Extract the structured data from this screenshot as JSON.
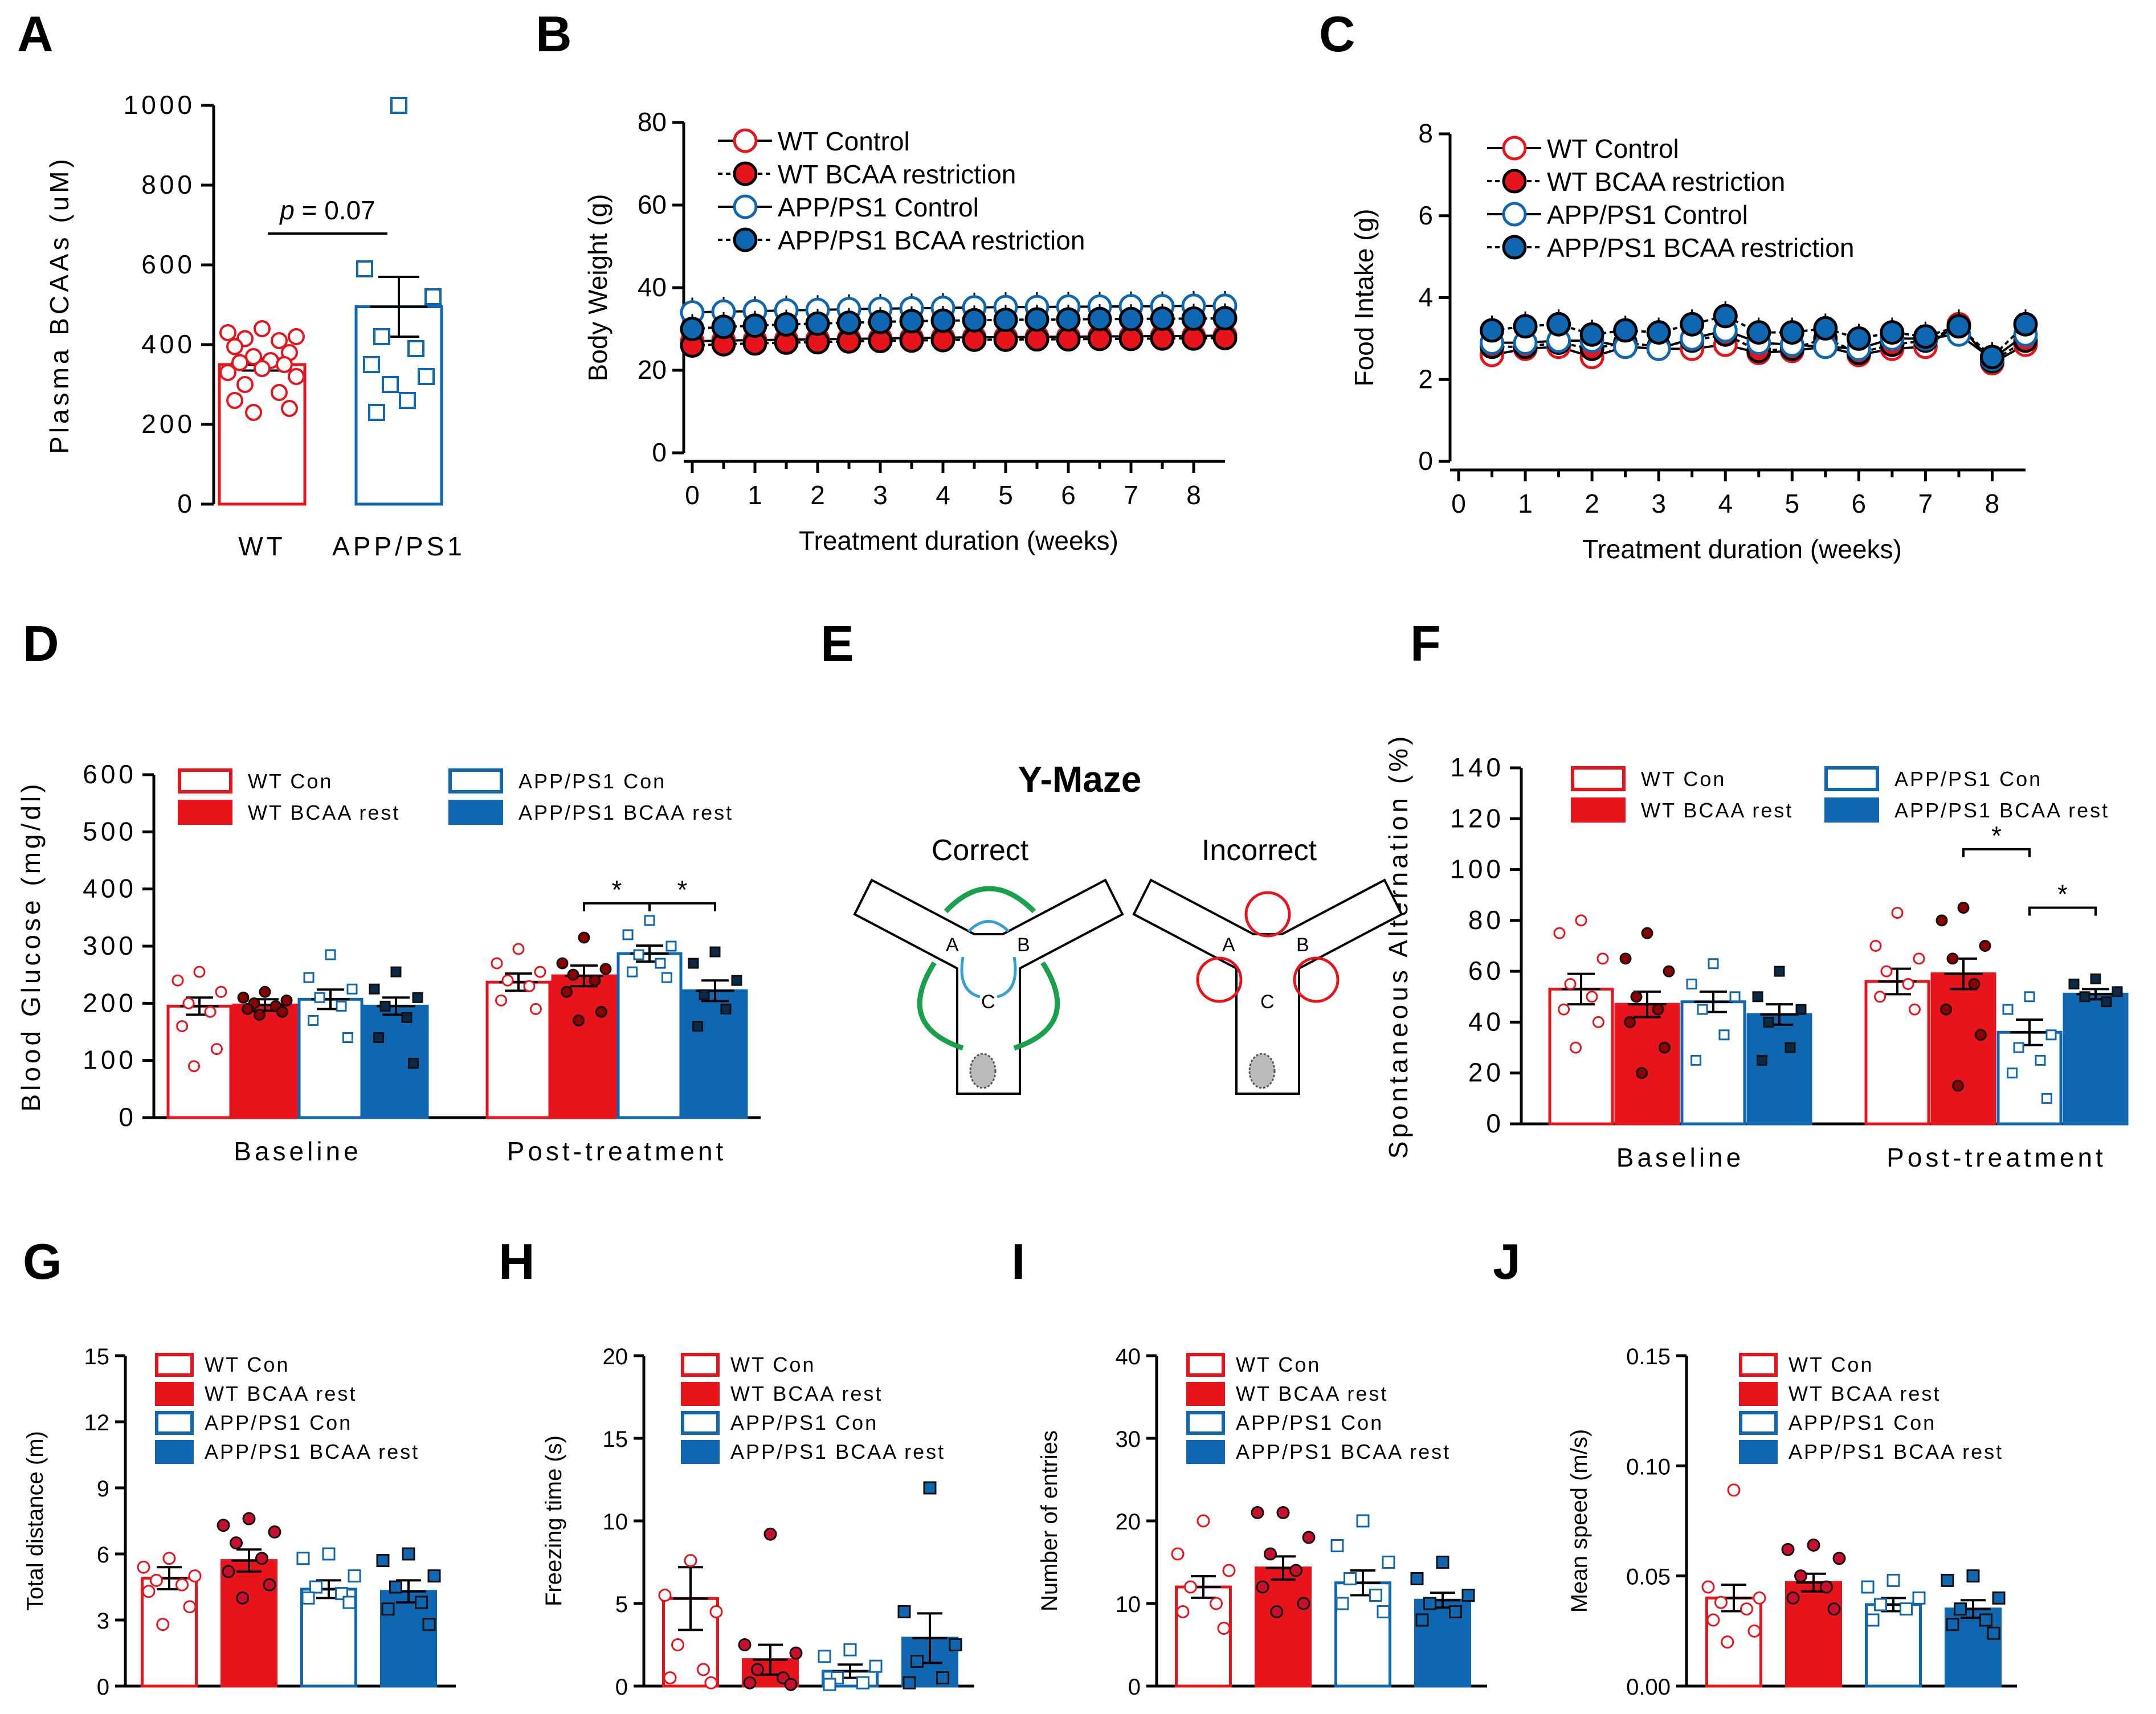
{
  "colors": {
    "red": "#e8141c",
    "blue": "#0f67b1",
    "dark": "#222222",
    "green": "#1aa04a",
    "lightblue": "#33a1d6"
  },
  "panel_letters": {
    "A": "A",
    "B": "B",
    "C": "C",
    "D": "D",
    "E": "E",
    "F": "F",
    "G": "G",
    "H": "H",
    "I": "I",
    "J": "J"
  },
  "chart_data": [
    {
      "id": "A",
      "type": "bar",
      "categories": [
        "WT",
        "APP/PS1"
      ],
      "ylabel": "Plasma BCAAs (uM)",
      "ylim": [
        0,
        1000
      ],
      "yticks": [
        0,
        200,
        400,
        600,
        800,
        1000
      ],
      "means": [
        350,
        495
      ],
      "sem": [
        15,
        75
      ],
      "annotation": {
        "italic": "p",
        "text": " = 0.07"
      },
      "points": [
        [
          440,
          430,
          420,
          415,
          410,
          395,
          380,
          370,
          360,
          355,
          350,
          340,
          330,
          320,
          300,
          280,
          260,
          240,
          230
        ],
        [
          1000,
          590,
          520,
          420,
          390,
          350,
          320,
          300,
          260,
          230
        ]
      ]
    },
    {
      "id": "B",
      "type": "line",
      "xlabel": "Treatment duration (weeks)",
      "ylabel": "Body Weight (g)",
      "xlim": [
        0,
        8.5
      ],
      "ylim": [
        0,
        80
      ],
      "xticks": [
        0,
        1,
        2,
        3,
        4,
        5,
        6,
        7,
        8
      ],
      "yticks": [
        0,
        20,
        40,
        60,
        80
      ],
      "x": [
        0,
        0.5,
        1,
        1.5,
        2,
        2.5,
        3,
        3.5,
        4,
        4.5,
        5,
        5.5,
        6,
        6.5,
        7,
        7.5,
        8,
        8.5
      ],
      "series": [
        {
          "name": "WT Control",
          "values": [
            27,
            27.2,
            27.3,
            27.4,
            27.5,
            27.6,
            27.7,
            27.8,
            27.9,
            28,
            28,
            28.1,
            28.1,
            28.2,
            28.2,
            28.3,
            28.3,
            28.4
          ]
        },
        {
          "name": "WT BCAA restriction",
          "values": [
            26,
            26.3,
            26.5,
            26.7,
            26.8,
            27,
            27.1,
            27.2,
            27.3,
            27.4,
            27.4,
            27.5,
            27.5,
            27.6,
            27.6,
            27.7,
            27.7,
            27.8
          ]
        },
        {
          "name": "APP/PS1 Control",
          "values": [
            34,
            34.2,
            34.3,
            34.5,
            34.6,
            34.8,
            34.9,
            35,
            35.1,
            35.2,
            35.3,
            35.3,
            35.4,
            35.4,
            35.5,
            35.5,
            35.6,
            35.6
          ]
        },
        {
          "name": "APP/PS1 BCAA restriction",
          "values": [
            30,
            30.5,
            30.8,
            31.1,
            31.3,
            31.5,
            31.7,
            31.9,
            32,
            32.1,
            32.2,
            32.3,
            32.3,
            32.4,
            32.4,
            32.5,
            32.5,
            32.6
          ]
        }
      ]
    },
    {
      "id": "C",
      "type": "line",
      "xlabel": "Treatment duration (weeks)",
      "ylabel": "Food Intake (g)",
      "xlim": [
        0,
        8.5
      ],
      "ylim": [
        0,
        8
      ],
      "xticks": [
        0,
        1,
        2,
        3,
        4,
        5,
        6,
        7,
        8
      ],
      "yticks": [
        0,
        2,
        4,
        6,
        8
      ],
      "x": [
        0.5,
        1,
        1.5,
        2,
        2.5,
        3,
        3.5,
        4,
        4.5,
        5,
        5.5,
        6,
        6.5,
        7,
        7.5,
        8,
        8.5
      ],
      "series": [
        {
          "name": "WT Control",
          "values": [
            2.6,
            2.75,
            2.8,
            2.55,
            2.8,
            2.75,
            2.75,
            2.85,
            2.65,
            2.7,
            2.8,
            2.6,
            2.75,
            2.8,
            3.35,
            2.4,
            2.85
          ]
        },
        {
          "name": "WT BCAA restriction",
          "values": [
            2.8,
            2.8,
            2.9,
            2.75,
            2.9,
            2.8,
            2.95,
            3.1,
            2.7,
            2.75,
            3.0,
            2.65,
            2.85,
            2.95,
            3.3,
            2.45,
            2.95
          ]
        },
        {
          "name": "APP/PS1 Control",
          "values": [
            2.9,
            2.9,
            2.95,
            2.95,
            2.8,
            2.75,
            3.0,
            3.2,
            2.9,
            2.85,
            2.8,
            2.75,
            3.0,
            3.0,
            3.1,
            2.5,
            3.1
          ]
        },
        {
          "name": "APP/PS1 BCAA restriction",
          "values": [
            3.2,
            3.3,
            3.35,
            3.1,
            3.2,
            3.15,
            3.35,
            3.55,
            3.15,
            3.15,
            3.25,
            3.0,
            3.15,
            3.05,
            3.3,
            2.55,
            3.35
          ]
        }
      ]
    },
    {
      "id": "D",
      "type": "bar",
      "ylabel": "Blood  Glucose (mg/dl)",
      "ylim": [
        0,
        600
      ],
      "yticks": [
        0,
        100,
        200,
        300,
        400,
        500,
        600
      ],
      "groups": [
        "Baseline",
        "Post-treatment"
      ],
      "series_names": [
        "WT Con",
        "WT BCAA rest",
        "APP/PS1 Con",
        "APP/PS1 BCAA rest"
      ],
      "means": [
        [
          195,
          197,
          207,
          195
        ],
        [
          237,
          248,
          287,
          222
        ]
      ],
      "sem": [
        [
          15,
          10,
          17,
          15
        ],
        [
          15,
          18,
          14,
          18
        ]
      ],
      "points": [
        [
          [
            255,
            240,
            220,
            200,
            185,
            160,
            120,
            90
          ],
          [
            220,
            210,
            205,
            200,
            195,
            190,
            185,
            180
          ],
          [
            285,
            245,
            225,
            210,
            195,
            170,
            140
          ],
          [
            255,
            225,
            210,
            195,
            175,
            140,
            95
          ]
        ],
        [
          [
            295,
            270,
            255,
            240,
            230,
            205,
            190
          ],
          [
            315,
            270,
            260,
            250,
            240,
            220,
            185,
            170
          ],
          [
            345,
            320,
            300,
            285,
            270,
            255,
            245
          ],
          [
            290,
            270,
            240,
            215,
            190,
            160
          ]
        ]
      ],
      "significance": [
        "*",
        "*"
      ]
    },
    {
      "id": "F",
      "type": "bar",
      "ylabel": "Spontaneous  Alternation (%)",
      "ylim": [
        0,
        140
      ],
      "yticks": [
        0,
        20,
        40,
        60,
        80,
        100,
        120,
        140
      ],
      "groups": [
        "Baseline",
        "Post-treatment"
      ],
      "series_names": [
        "WT Con",
        "WT BCAA rest",
        "APP/PS1 Con",
        "APP/PS1 BCAA rest"
      ],
      "means": [
        [
          53,
          47,
          48,
          43
        ],
        [
          56,
          59,
          36,
          51
        ]
      ],
      "sem": [
        [
          6,
          5,
          4,
          4
        ],
        [
          5,
          6,
          5,
          2
        ]
      ],
      "points": [
        [
          [
            80,
            75,
            65,
            55,
            50,
            45,
            40,
            30
          ],
          [
            75,
            65,
            60,
            50,
            45,
            40,
            30,
            20
          ],
          [
            63,
            55,
            50,
            45,
            35,
            25
          ],
          [
            60,
            50,
            45,
            40,
            30,
            25
          ]
        ],
        [
          [
            83,
            70,
            65,
            60,
            55,
            50,
            45
          ],
          [
            85,
            80,
            70,
            65,
            55,
            45,
            35,
            15
          ],
          [
            50,
            45,
            35,
            30,
            25,
            20,
            10
          ],
          [
            57,
            55,
            52,
            50,
            48
          ]
        ]
      ],
      "significance": [
        "*",
        "*"
      ]
    },
    {
      "id": "G",
      "type": "bar",
      "ylabel": "Total distance (m)",
      "ylim": [
        0,
        15
      ],
      "yticks": [
        0,
        3,
        6,
        9,
        12,
        15
      ],
      "series_names": [
        "WT Con",
        "WT BCAA rest",
        "APP/PS1 Con",
        "APP/PS1 BCAA rest"
      ],
      "means": [
        4.9,
        5.7,
        4.4,
        4.3
      ],
      "sem": [
        0.5,
        0.5,
        0.4,
        0.5
      ],
      "points": [
        [
          5.8,
          5.4,
          5.0,
          4.8,
          4.6,
          4.3,
          3.6,
          2.8
        ],
        [
          7.6,
          7.3,
          7.0,
          6.5,
          5.8,
          5.2,
          4.6,
          4.0
        ],
        [
          6.0,
          5.8,
          5.0,
          4.5,
          4.2,
          4.0,
          3.8
        ],
        [
          6.0,
          5.7,
          5.0,
          4.5,
          3.8,
          3.5,
          2.8
        ]
      ]
    },
    {
      "id": "H",
      "type": "bar",
      "ylabel": "Freezing time (s)",
      "ylim": [
        0,
        20
      ],
      "yticks": [
        0,
        5,
        10,
        15,
        20
      ],
      "series_names": [
        "WT Con",
        "WT BCAA rest",
        "APP/PS1 Con",
        "APP/PS1 BCAA rest"
      ],
      "means": [
        5.3,
        1.6,
        0.9,
        2.9
      ],
      "sem": [
        1.9,
        0.9,
        0.4,
        1.5
      ],
      "points": [
        [
          7.6,
          5.5,
          4.5,
          2.5,
          1.0,
          0.5,
          0.2
        ],
        [
          9.2,
          2.5,
          2.0,
          1.0,
          0.5,
          0.2,
          0.1
        ],
        [
          2.2,
          1.8,
          1.2,
          0.5,
          0.2,
          0.1
        ],
        [
          12,
          4.5,
          2.5,
          1.5,
          0.5,
          0.2
        ]
      ]
    },
    {
      "id": "I",
      "type": "bar",
      "ylabel": "Number of entries",
      "ylim": [
        0,
        40
      ],
      "yticks": [
        0,
        10,
        20,
        30,
        40
      ],
      "series_names": [
        "WT Con",
        "WT BCAA rest",
        "APP/PS1 Con",
        "APP/PS1 BCAA rest"
      ],
      "means": [
        12,
        14.3,
        12.5,
        10.4
      ],
      "sem": [
        1.3,
        1.4,
        1.5,
        0.9
      ],
      "points": [
        [
          20,
          16,
          14,
          12,
          10,
          9,
          7
        ],
        [
          21,
          21,
          18,
          16,
          14,
          12,
          10,
          9
        ],
        [
          20,
          17,
          15,
          13,
          11,
          10,
          9
        ],
        [
          15,
          13,
          11,
          10,
          9,
          8
        ]
      ]
    },
    {
      "id": "J",
      "type": "bar",
      "ylabel": "Mean speed (m/s)",
      "ylim": [
        0,
        0.15
      ],
      "yticks": [
        "0.00",
        "0.05",
        "0.10",
        "0.15"
      ],
      "series_names": [
        "WT Con",
        "WT BCAA rest",
        "APP/PS1 Con",
        "APP/PS1 BCAA rest"
      ],
      "means": [
        0.04,
        0.047,
        0.037,
        0.035
      ],
      "sem": [
        0.006,
        0.004,
        0.003,
        0.004
      ],
      "points": [
        [
          0.089,
          0.045,
          0.04,
          0.038,
          0.035,
          0.03,
          0.025,
          0.02
        ],
        [
          0.064,
          0.062,
          0.058,
          0.05,
          0.045,
          0.04,
          0.035
        ],
        [
          0.048,
          0.045,
          0.04,
          0.037,
          0.035,
          0.03
        ],
        [
          0.05,
          0.048,
          0.04,
          0.035,
          0.03,
          0.028,
          0.024
        ]
      ]
    }
  ],
  "maze": {
    "title": "Y-Maze",
    "correct": "Correct",
    "incorrect": "Incorrect",
    "arms": [
      "A",
      "B",
      "C"
    ]
  }
}
